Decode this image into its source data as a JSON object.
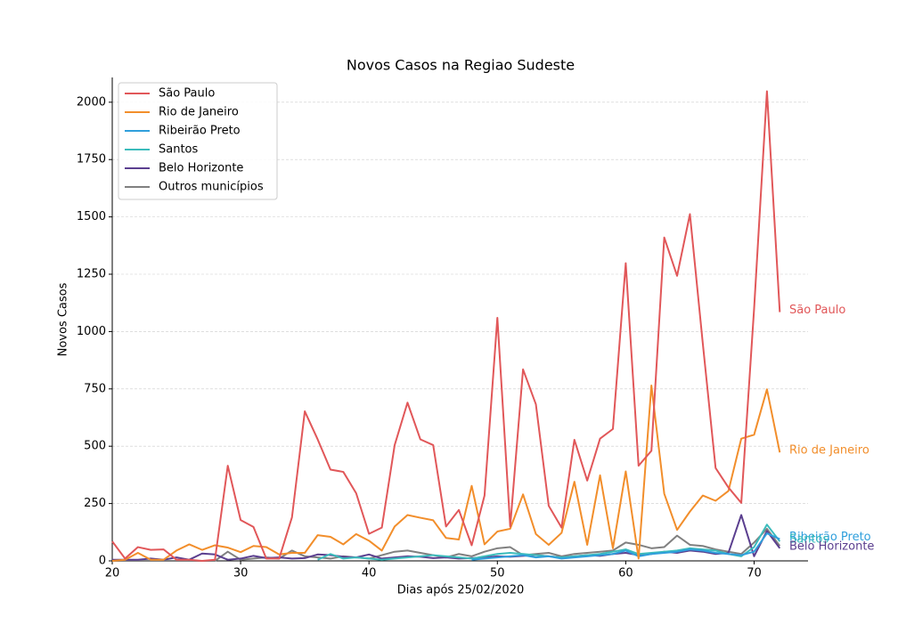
{
  "chart_data": {
    "type": "line",
    "title": "Novos Casos na Regiao Sudeste",
    "x_label": "Dias após 25/02/2020",
    "y_label": "Novos Casos",
    "x": [
      20,
      21,
      22,
      23,
      24,
      25,
      26,
      27,
      28,
      29,
      30,
      31,
      32,
      33,
      34,
      35,
      36,
      37,
      38,
      39,
      40,
      41,
      42,
      43,
      44,
      45,
      46,
      47,
      48,
      49,
      50,
      51,
      52,
      53,
      54,
      55,
      56,
      57,
      58,
      59,
      60,
      61,
      62,
      63,
      64,
      65,
      66,
      67,
      68,
      69,
      70,
      71,
      72
    ],
    "series": [
      {
        "name": "São Paulo",
        "color": "#e15759",
        "values": [
          85,
          10,
          60,
          48,
          50,
          5,
          5,
          0,
          5,
          415,
          178,
          148,
          10,
          10,
          190,
          652,
          530,
          398,
          388,
          295,
          118,
          145,
          505,
          690,
          530,
          505,
          150,
          222,
          68,
          285,
          1060,
          150,
          835,
          683,
          240,
          145,
          528,
          350,
          533,
          575,
          1298,
          415,
          480,
          1410,
          1243,
          1512,
          950,
          405,
          320,
          253,
          1100,
          2048,
          1085
        ]
      },
      {
        "name": "Rio de Janeiro",
        "color": "#f28e2b",
        "values": [
          0,
          5,
          35,
          5,
          5,
          45,
          72,
          48,
          68,
          58,
          38,
          65,
          60,
          28,
          35,
          35,
          112,
          105,
          72,
          117,
          88,
          45,
          150,
          200,
          188,
          177,
          100,
          93,
          327,
          72,
          128,
          140,
          290,
          117,
          70,
          122,
          345,
          70,
          373,
          55,
          390,
          10,
          765,
          293,
          135,
          215,
          285,
          262,
          305,
          533,
          550,
          748,
          473
        ]
      },
      {
        "name": "Ribeirão Preto",
        "color": "#2f9fdc",
        "values": [
          null,
          null,
          null,
          null,
          null,
          null,
          null,
          null,
          null,
          null,
          null,
          null,
          null,
          null,
          null,
          null,
          null,
          null,
          null,
          null,
          null,
          null,
          null,
          null,
          null,
          null,
          null,
          null,
          5,
          10,
          15,
          20,
          25,
          15,
          20,
          10,
          15,
          20,
          25,
          30,
          45,
          20,
          30,
          35,
          40,
          50,
          45,
          35,
          30,
          25,
          40,
          120,
          95
        ]
      },
      {
        "name": "Santos",
        "color": "#3bbcbc",
        "values": [
          null,
          null,
          null,
          null,
          null,
          null,
          null,
          null,
          null,
          null,
          null,
          null,
          null,
          null,
          null,
          null,
          5,
          30,
          10,
          15,
          10,
          5,
          10,
          15,
          20,
          25,
          20,
          15,
          10,
          20,
          30,
          35,
          30,
          25,
          20,
          15,
          20,
          25,
          30,
          40,
          50,
          30,
          35,
          40,
          45,
          55,
          50,
          45,
          30,
          20,
          60,
          158,
          85
        ]
      },
      {
        "name": "Belo Horizonte",
        "color": "#5b3f8f",
        "values": [
          5,
          5,
          5,
          10,
          5,
          15,
          5,
          32,
          28,
          5,
          10,
          22,
          12,
          15,
          10,
          12,
          28,
          25,
          18,
          15,
          28,
          10,
          15,
          20,
          18,
          12,
          15,
          10,
          12,
          15,
          20,
          18,
          22,
          25,
          20,
          15,
          20,
          25,
          22,
          30,
          35,
          25,
          30,
          40,
          35,
          45,
          40,
          30,
          35,
          200,
          20,
          130,
          55
        ]
      },
      {
        "name": "Outros municípios",
        "color": "#808080",
        "values": [
          0,
          0,
          0,
          0,
          0,
          0,
          0,
          0,
          0,
          40,
          5,
          10,
          15,
          10,
          45,
          20,
          15,
          10,
          20,
          15,
          10,
          25,
          40,
          45,
          35,
          25,
          15,
          30,
          20,
          40,
          55,
          60,
          25,
          30,
          35,
          20,
          30,
          35,
          40,
          45,
          80,
          70,
          55,
          60,
          110,
          70,
          65,
          50,
          40,
          30,
          80,
          140,
          65
        ]
      }
    ],
    "xlim": [
      20,
      74.2
    ],
    "ylim": [
      0,
      2108
    ],
    "xticks": [
      20,
      30,
      40,
      50,
      60,
      70
    ],
    "yticks": [
      0,
      250,
      500,
      750,
      1000,
      1250,
      1500,
      1750,
      2000
    ],
    "grid": true,
    "legend": "upper left"
  }
}
